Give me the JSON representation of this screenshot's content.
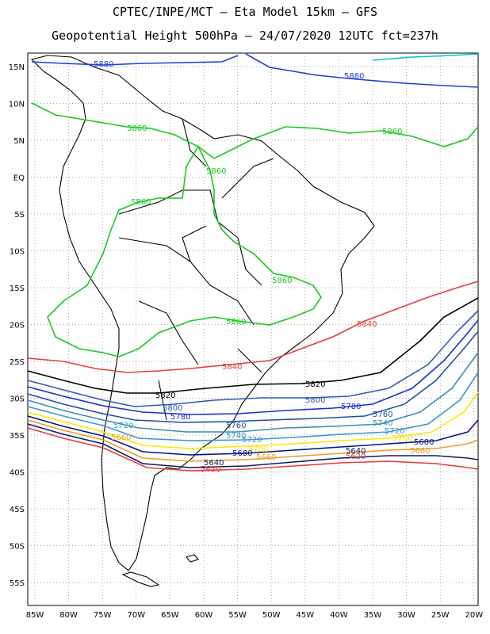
{
  "header": {
    "title_line1": "CPTEC/INPE/MCT –  Eta Model 15km – GFS",
    "title_line2": "Geopotential Height 500hPa – 24/07/2020 12UTC fct=237h"
  },
  "map": {
    "lat_labels": [
      "15N",
      "10N",
      "5N",
      "EQ",
      "5S",
      "10S",
      "15S",
      "20S",
      "25S",
      "30S",
      "35S",
      "40S",
      "45S",
      "50S",
      "55S"
    ],
    "lon_labels": [
      "85W",
      "80W",
      "75W",
      "70W",
      "65W",
      "60W",
      "55W",
      "50W",
      "45W",
      "40W",
      "35W",
      "30W",
      "25W",
      "20W"
    ],
    "contours": [
      {
        "level": "5880",
        "color": "#1e3cdc"
      },
      {
        "level": "5860",
        "color": "#19c81e"
      },
      {
        "level": "5840",
        "color": "#e63c3c"
      },
      {
        "level": "5820",
        "color": "#000000"
      },
      {
        "level": "5800",
        "color": "#2d5ab4"
      },
      {
        "level": "5780",
        "color": "#1432c8"
      },
      {
        "level": "5760",
        "color": "#1e50a0"
      },
      {
        "level": "5740",
        "color": "#3c8cb4"
      },
      {
        "level": "5720",
        "color": "#3c96c8"
      },
      {
        "level": "5700",
        "color": "#ffe600"
      },
      {
        "level": "5680",
        "color": "#0a1478"
      },
      {
        "level": "5660",
        "color": "#e6a028"
      },
      {
        "level": "5640",
        "color": "#0a1e64"
      },
      {
        "level": "5620",
        "color": "#e63c3c"
      },
      {
        "level": "5900",
        "color": "#00c8c8"
      }
    ]
  }
}
